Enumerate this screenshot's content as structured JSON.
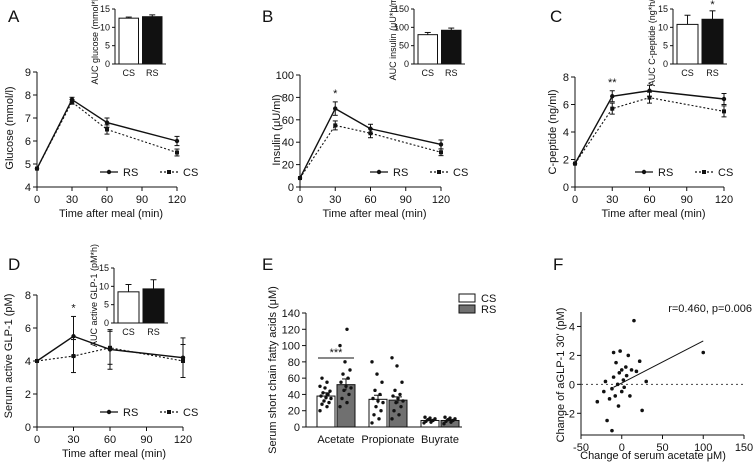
{
  "chart_data": [
    {
      "panel": "A",
      "type": "line",
      "xlabel": "Time after meal (min)",
      "ylabel": "Glucose (mmol/l)",
      "x": [
        0,
        30,
        60,
        120
      ],
      "xticks": [
        0,
        30,
        60,
        90,
        120
      ],
      "yticks": [
        4,
        5,
        6,
        7,
        8,
        9
      ],
      "ylim": [
        4,
        9
      ],
      "xlim": [
        0,
        120
      ],
      "series": [
        {
          "name": "RS",
          "style": "solid",
          "values": [
            4.8,
            7.8,
            6.8,
            6.0
          ],
          "err": [
            0,
            0.1,
            0.2,
            0.2
          ]
        },
        {
          "name": "CS",
          "style": "dotted",
          "values": [
            4.8,
            7.7,
            6.5,
            5.5
          ],
          "err": [
            0,
            0.1,
            0.2,
            0.15
          ]
        }
      ],
      "legend": [
        "RS",
        "CS"
      ],
      "inset": {
        "type": "bar",
        "ylabel": "AUC glucose (mmol*h/l)",
        "categories": [
          "CS",
          "RS"
        ],
        "values": [
          12.5,
          12.9
        ],
        "err": [
          0.3,
          0.5
        ],
        "ylim": [
          0,
          15
        ],
        "yticks": [
          0,
          5,
          10,
          15
        ],
        "significance": []
      },
      "annotations": []
    },
    {
      "panel": "B",
      "type": "line",
      "xlabel": "Time after meal (min)",
      "ylabel": "Insulin (μU/ml)",
      "x": [
        0,
        30,
        60,
        120
      ],
      "xticks": [
        0,
        30,
        60,
        90,
        120
      ],
      "yticks": [
        0,
        20,
        40,
        60,
        80,
        100
      ],
      "ylim": [
        0,
        100
      ],
      "xlim": [
        0,
        120
      ],
      "series": [
        {
          "name": "RS",
          "style": "solid",
          "values": [
            8,
            70,
            52,
            38
          ],
          "err": [
            0,
            6,
            4,
            4
          ]
        },
        {
          "name": "CS",
          "style": "dotted",
          "values": [
            8,
            55,
            48,
            31
          ],
          "err": [
            0,
            4,
            4,
            3
          ]
        }
      ],
      "legend": [
        "RS",
        "CS"
      ],
      "inset": {
        "type": "bar",
        "ylabel": "AUC insulin (μU*h/ml)",
        "categories": [
          "CS",
          "RS"
        ],
        "values": [
          80,
          92
        ],
        "err": [
          6,
          6
        ],
        "ylim": [
          0,
          150
        ],
        "yticks": [
          0,
          50,
          100,
          150
        ],
        "significance": []
      },
      "annotations": [
        {
          "x": 30,
          "text": "*"
        }
      ]
    },
    {
      "panel": "C",
      "type": "line",
      "xlabel": "Time after meal (min)",
      "ylabel": "C-peptide (ng/ml)",
      "x": [
        0,
        30,
        60,
        120
      ],
      "xticks": [
        0,
        30,
        60,
        90,
        120
      ],
      "yticks": [
        0,
        2,
        4,
        6,
        8
      ],
      "ylim": [
        0,
        8
      ],
      "xlim": [
        0,
        120
      ],
      "series": [
        {
          "name": "RS",
          "style": "solid",
          "values": [
            1.7,
            6.6,
            7.0,
            6.4
          ],
          "err": [
            0,
            0.4,
            0.4,
            0.4
          ]
        },
        {
          "name": "CS",
          "style": "dotted",
          "values": [
            1.7,
            5.7,
            6.5,
            5.5
          ],
          "err": [
            0,
            0.4,
            0.4,
            0.4
          ]
        }
      ],
      "legend": [
        "RS",
        "CS"
      ],
      "inset": {
        "type": "bar",
        "ylabel": "AUC C-peptide (ng*h/ml)",
        "categories": [
          "CS",
          "RS"
        ],
        "values": [
          10.8,
          12.2
        ],
        "err": [
          2.5,
          2.3
        ],
        "ylim": [
          0,
          15
        ],
        "yticks": [
          0,
          5,
          10,
          15
        ],
        "significance": [
          {
            "text": "*",
            "category": "RS"
          }
        ]
      },
      "annotations": [
        {
          "x": 30,
          "text": "**"
        }
      ]
    },
    {
      "panel": "D",
      "type": "line",
      "xlabel": "Time after meal (min)",
      "ylabel": "Serum active GLP-1 (pM)",
      "x": [
        0,
        30,
        60,
        120
      ],
      "xticks": [
        0,
        30,
        60,
        90,
        120
      ],
      "yticks": [
        0,
        2,
        4,
        6,
        8
      ],
      "ylim": [
        0,
        8
      ],
      "xlim": [
        0,
        120
      ],
      "series": [
        {
          "name": "RS",
          "style": "solid",
          "values": [
            4.0,
            5.5,
            4.7,
            4.2
          ],
          "err": [
            0,
            1.2,
            1.2,
            1.2
          ]
        },
        {
          "name": "CS",
          "style": "dotted",
          "values": [
            4.0,
            4.3,
            4.8,
            4.0
          ],
          "err": [
            0,
            1.0,
            1.0,
            1.0
          ]
        }
      ],
      "legend": [
        "RS",
        "CS"
      ],
      "inset": {
        "type": "bar",
        "ylabel": "AUC active GLP-1 (pM*h)",
        "categories": [
          "CS",
          "RS"
        ],
        "values": [
          8.5,
          9.3
        ],
        "err": [
          2.0,
          2.5
        ],
        "ylim": [
          0,
          15
        ],
        "yticks": [
          0,
          5,
          10,
          15
        ],
        "significance": []
      },
      "annotations": [
        {
          "x": 30,
          "text": "*"
        }
      ]
    },
    {
      "panel": "E",
      "type": "bar",
      "ylabel": "Serum short chain fatty acids (μM)",
      "categories": [
        "Acetate",
        "Propionate",
        "Buyrate"
      ],
      "ylim": [
        0,
        140
      ],
      "yticks": [
        0,
        20,
        40,
        60,
        80,
        100,
        120,
        140
      ],
      "series": [
        {
          "name": "CS",
          "color": "#ffffff",
          "values": [
            38,
            34,
            8
          ],
          "err": [
            4,
            5,
            1
          ]
        },
        {
          "name": "RS",
          "color": "#707070",
          "values": [
            52,
            33,
            8
          ],
          "err": [
            7,
            4,
            1
          ]
        }
      ],
      "legend": [
        "CS",
        "RS"
      ],
      "significance": [
        {
          "category": "Acetate",
          "text": "***"
        }
      ],
      "points": {
        "Acetate": {
          "CS": [
            20,
            25,
            28,
            30,
            32,
            35,
            36,
            38,
            40,
            42,
            44,
            48,
            50,
            55,
            60
          ],
          "RS": [
            25,
            30,
            35,
            40,
            45,
            48,
            50,
            55,
            60,
            65,
            70,
            80,
            100,
            120
          ]
        },
        "Propionate": {
          "CS": [
            5,
            10,
            15,
            20,
            25,
            30,
            32,
            35,
            40,
            45,
            55,
            65,
            80
          ],
          "RS": [
            10,
            15,
            20,
            25,
            30,
            32,
            35,
            38,
            40,
            45,
            55,
            75,
            85
          ]
        },
        "Buyrate": {
          "CS": [
            5,
            6,
            7,
            8,
            9,
            10,
            11,
            12
          ],
          "RS": [
            4,
            6,
            7,
            8,
            9,
            10,
            11,
            12
          ]
        }
      }
    },
    {
      "panel": "F",
      "type": "scatter",
      "xlabel": "Change of serum acetate μM)",
      "ylabel": "Change of aGLP-1 30' (pM)",
      "xlim": [
        -50,
        150
      ],
      "ylim": [
        -3.5,
        5
      ],
      "xticks": [
        -50,
        0,
        50,
        100,
        150
      ],
      "yticks": [
        -2,
        0,
        2,
        4
      ],
      "annotation": "r=0.460, p=0.006",
      "fit": {
        "x": [
          -10,
          100
        ],
        "y": [
          -0.2,
          3.0
        ]
      },
      "points": [
        [
          -30,
          -1.2
        ],
        [
          -22,
          -0.5
        ],
        [
          -20,
          0.2
        ],
        [
          -18,
          -2.5
        ],
        [
          -15,
          -1.0
        ],
        [
          -12,
          -0.3
        ],
        [
          -10,
          0.5
        ],
        [
          -10,
          2.2
        ],
        [
          -8,
          -0.8
        ],
        [
          -7,
          1.5
        ],
        [
          -5,
          0.0
        ],
        [
          -4,
          -1.5
        ],
        [
          -3,
          0.8
        ],
        [
          -2,
          2.3
        ],
        [
          0,
          -0.5
        ],
        [
          0,
          1.0
        ],
        [
          2,
          0.3
        ],
        [
          3,
          -0.2
        ],
        [
          5,
          1.2
        ],
        [
          6,
          0.6
        ],
        [
          8,
          2.0
        ],
        [
          10,
          -0.8
        ],
        [
          12,
          1.0
        ],
        [
          15,
          4.4
        ],
        [
          18,
          0.9
        ],
        [
          22,
          1.6
        ],
        [
          25,
          -1.8
        ],
        [
          30,
          0.2
        ],
        [
          100,
          2.2
        ],
        [
          -12,
          -3.2
        ]
      ]
    }
  ]
}
